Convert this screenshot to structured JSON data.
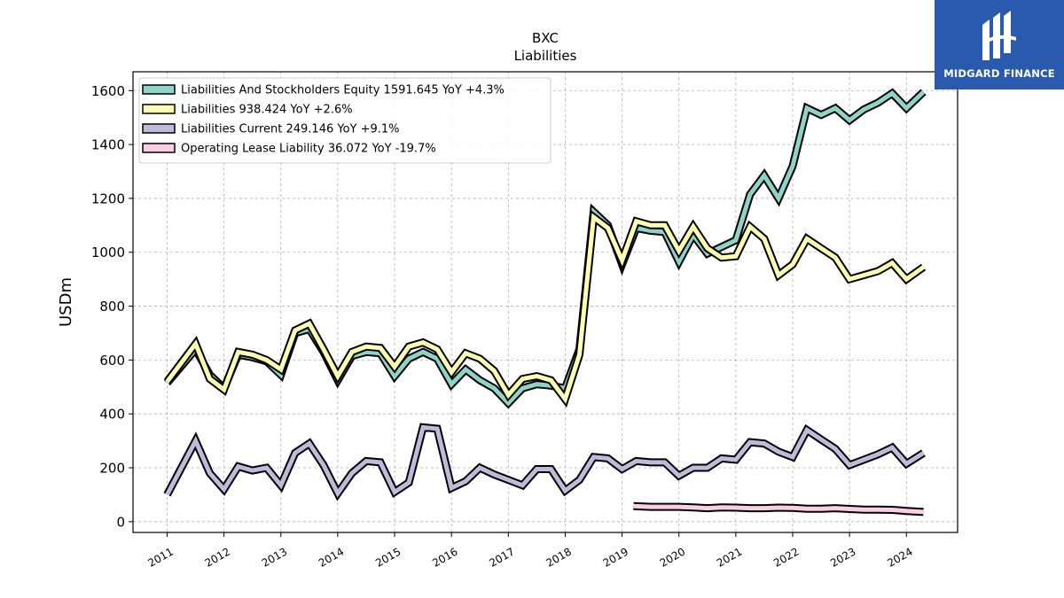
{
  "chart_data": {
    "type": "line",
    "title": "BXC",
    "subtitle": "Liabilities",
    "xlabel": "",
    "ylabel": "USDm",
    "xlim": [
      2010.4,
      2024.9
    ],
    "ylim": [
      -40,
      1670
    ],
    "yticks": [
      0,
      200,
      400,
      600,
      800,
      1000,
      1200,
      1400,
      1600
    ],
    "xticks": [
      2011,
      2012,
      2013,
      2014,
      2015,
      2016,
      2017,
      2018,
      2019,
      2020,
      2021,
      2022,
      2023,
      2024
    ],
    "grid": true,
    "legend_position": "top-left",
    "series": [
      {
        "name": "Liabilities And Stockholders Equity  1591.645 YoY +4.3%",
        "color": "#8dd3c7",
        "points": [
          [
            2011.0,
            515
          ],
          [
            2011.5,
            640
          ],
          [
            2011.75,
            545
          ],
          [
            2012.0,
            495
          ],
          [
            2012.25,
            620
          ],
          [
            2012.5,
            610
          ],
          [
            2012.75,
            595
          ],
          [
            2013.0,
            545
          ],
          [
            2013.25,
            700
          ],
          [
            2013.5,
            715
          ],
          [
            2013.75,
            630
          ],
          [
            2014.0,
            525
          ],
          [
            2014.25,
            615
          ],
          [
            2014.5,
            630
          ],
          [
            2014.75,
            625
          ],
          [
            2015.0,
            540
          ],
          [
            2015.25,
            605
          ],
          [
            2015.5,
            630
          ],
          [
            2015.75,
            605
          ],
          [
            2016.0,
            510
          ],
          [
            2016.25,
            565
          ],
          [
            2016.5,
            525
          ],
          [
            2016.75,
            495
          ],
          [
            2017.0,
            440
          ],
          [
            2017.25,
            495
          ],
          [
            2017.5,
            510
          ],
          [
            2017.75,
            505
          ],
          [
            2018.0,
            495
          ],
          [
            2018.25,
            640
          ],
          [
            2018.5,
            1150
          ],
          [
            2018.75,
            1100
          ],
          [
            2019.0,
            955
          ],
          [
            2019.25,
            1090
          ],
          [
            2019.5,
            1080
          ],
          [
            2019.75,
            1075
          ],
          [
            2020.0,
            965
          ],
          [
            2020.25,
            1065
          ],
          [
            2020.5,
            995
          ],
          [
            2020.75,
            1020
          ],
          [
            2021.0,
            1045
          ],
          [
            2021.25,
            1215
          ],
          [
            2021.5,
            1285
          ],
          [
            2021.75,
            1200
          ],
          [
            2022.0,
            1320
          ],
          [
            2022.25,
            1535
          ],
          [
            2022.5,
            1510
          ],
          [
            2022.75,
            1535
          ],
          [
            2023.0,
            1490
          ],
          [
            2023.25,
            1530
          ],
          [
            2023.5,
            1555
          ],
          [
            2023.75,
            1590
          ],
          [
            2024.0,
            1535
          ],
          [
            2024.3,
            1595
          ]
        ]
      },
      {
        "name": "Liabilities  938.424 YoY +2.6%",
        "color": "#ffffb3",
        "points": [
          [
            2011.0,
            520
          ],
          [
            2011.5,
            660
          ],
          [
            2011.75,
            530
          ],
          [
            2012.0,
            490
          ],
          [
            2012.25,
            630
          ],
          [
            2012.5,
            620
          ],
          [
            2012.75,
            600
          ],
          [
            2013.0,
            565
          ],
          [
            2013.25,
            710
          ],
          [
            2013.5,
            735
          ],
          [
            2013.75,
            640
          ],
          [
            2014.0,
            540
          ],
          [
            2014.25,
            630
          ],
          [
            2014.5,
            650
          ],
          [
            2014.75,
            645
          ],
          [
            2015.0,
            575
          ],
          [
            2015.25,
            650
          ],
          [
            2015.5,
            665
          ],
          [
            2015.75,
            640
          ],
          [
            2016.0,
            555
          ],
          [
            2016.25,
            625
          ],
          [
            2016.5,
            605
          ],
          [
            2016.75,
            560
          ],
          [
            2017.0,
            470
          ],
          [
            2017.25,
            530
          ],
          [
            2017.5,
            540
          ],
          [
            2017.75,
            525
          ],
          [
            2018.0,
            455
          ],
          [
            2018.25,
            620
          ],
          [
            2018.5,
            1130
          ],
          [
            2018.75,
            1090
          ],
          [
            2019.0,
            970
          ],
          [
            2019.25,
            1115
          ],
          [
            2019.5,
            1100
          ],
          [
            2019.75,
            1100
          ],
          [
            2020.0,
            1005
          ],
          [
            2020.25,
            1095
          ],
          [
            2020.5,
            1015
          ],
          [
            2020.75,
            980
          ],
          [
            2021.0,
            985
          ],
          [
            2021.25,
            1095
          ],
          [
            2021.5,
            1050
          ],
          [
            2021.75,
            915
          ],
          [
            2022.0,
            955
          ],
          [
            2022.25,
            1050
          ],
          [
            2022.5,
            1015
          ],
          [
            2022.75,
            980
          ],
          [
            2023.0,
            900
          ],
          [
            2023.25,
            915
          ],
          [
            2023.5,
            930
          ],
          [
            2023.75,
            960
          ],
          [
            2024.0,
            900
          ],
          [
            2024.3,
            945
          ]
        ]
      },
      {
        "name": "Liabilities Current  249.146 YoY +9.1%",
        "color": "#bebada",
        "points": [
          [
            2011.0,
            100
          ],
          [
            2011.5,
            300
          ],
          [
            2011.75,
            180
          ],
          [
            2012.0,
            120
          ],
          [
            2012.25,
            205
          ],
          [
            2012.5,
            190
          ],
          [
            2012.75,
            200
          ],
          [
            2013.0,
            135
          ],
          [
            2013.25,
            255
          ],
          [
            2013.5,
            290
          ],
          [
            2013.75,
            210
          ],
          [
            2014.0,
            105
          ],
          [
            2014.25,
            180
          ],
          [
            2014.5,
            225
          ],
          [
            2014.75,
            220
          ],
          [
            2015.0,
            110
          ],
          [
            2015.25,
            145
          ],
          [
            2015.5,
            350
          ],
          [
            2015.75,
            345
          ],
          [
            2016.0,
            125
          ],
          [
            2016.25,
            150
          ],
          [
            2016.5,
            200
          ],
          [
            2016.75,
            175
          ],
          [
            2017.0,
            155
          ],
          [
            2017.25,
            135
          ],
          [
            2017.5,
            195
          ],
          [
            2017.75,
            195
          ],
          [
            2018.0,
            115
          ],
          [
            2018.25,
            155
          ],
          [
            2018.5,
            240
          ],
          [
            2018.75,
            235
          ],
          [
            2019.0,
            195
          ],
          [
            2019.25,
            225
          ],
          [
            2019.5,
            220
          ],
          [
            2019.75,
            220
          ],
          [
            2020.0,
            170
          ],
          [
            2020.25,
            200
          ],
          [
            2020.5,
            200
          ],
          [
            2020.75,
            235
          ],
          [
            2021.0,
            230
          ],
          [
            2021.25,
            295
          ],
          [
            2021.5,
            290
          ],
          [
            2021.75,
            260
          ],
          [
            2022.0,
            240
          ],
          [
            2022.25,
            340
          ],
          [
            2022.5,
            305
          ],
          [
            2022.75,
            270
          ],
          [
            2023.0,
            210
          ],
          [
            2023.25,
            230
          ],
          [
            2023.5,
            250
          ],
          [
            2023.75,
            275
          ],
          [
            2024.0,
            215
          ],
          [
            2024.3,
            255
          ]
        ]
      },
      {
        "name": "Operating Lease Liability  36.072 YoY -19.7%",
        "color": "#fccde5",
        "points": [
          [
            2019.2,
            58
          ],
          [
            2019.5,
            55
          ],
          [
            2019.75,
            55
          ],
          [
            2020.0,
            55
          ],
          [
            2020.25,
            53
          ],
          [
            2020.5,
            50
          ],
          [
            2020.75,
            53
          ],
          [
            2021.0,
            52
          ],
          [
            2021.25,
            50
          ],
          [
            2021.5,
            50
          ],
          [
            2021.75,
            52
          ],
          [
            2022.0,
            51
          ],
          [
            2022.25,
            48
          ],
          [
            2022.5,
            48
          ],
          [
            2022.75,
            50
          ],
          [
            2023.0,
            47
          ],
          [
            2023.25,
            45
          ],
          [
            2023.5,
            45
          ],
          [
            2023.75,
            44
          ],
          [
            2024.0,
            40
          ],
          [
            2024.3,
            36
          ]
        ]
      }
    ]
  },
  "branding": {
    "logo_text": "MIDGARD FINANCE",
    "logo_background": "#2a5aad"
  }
}
